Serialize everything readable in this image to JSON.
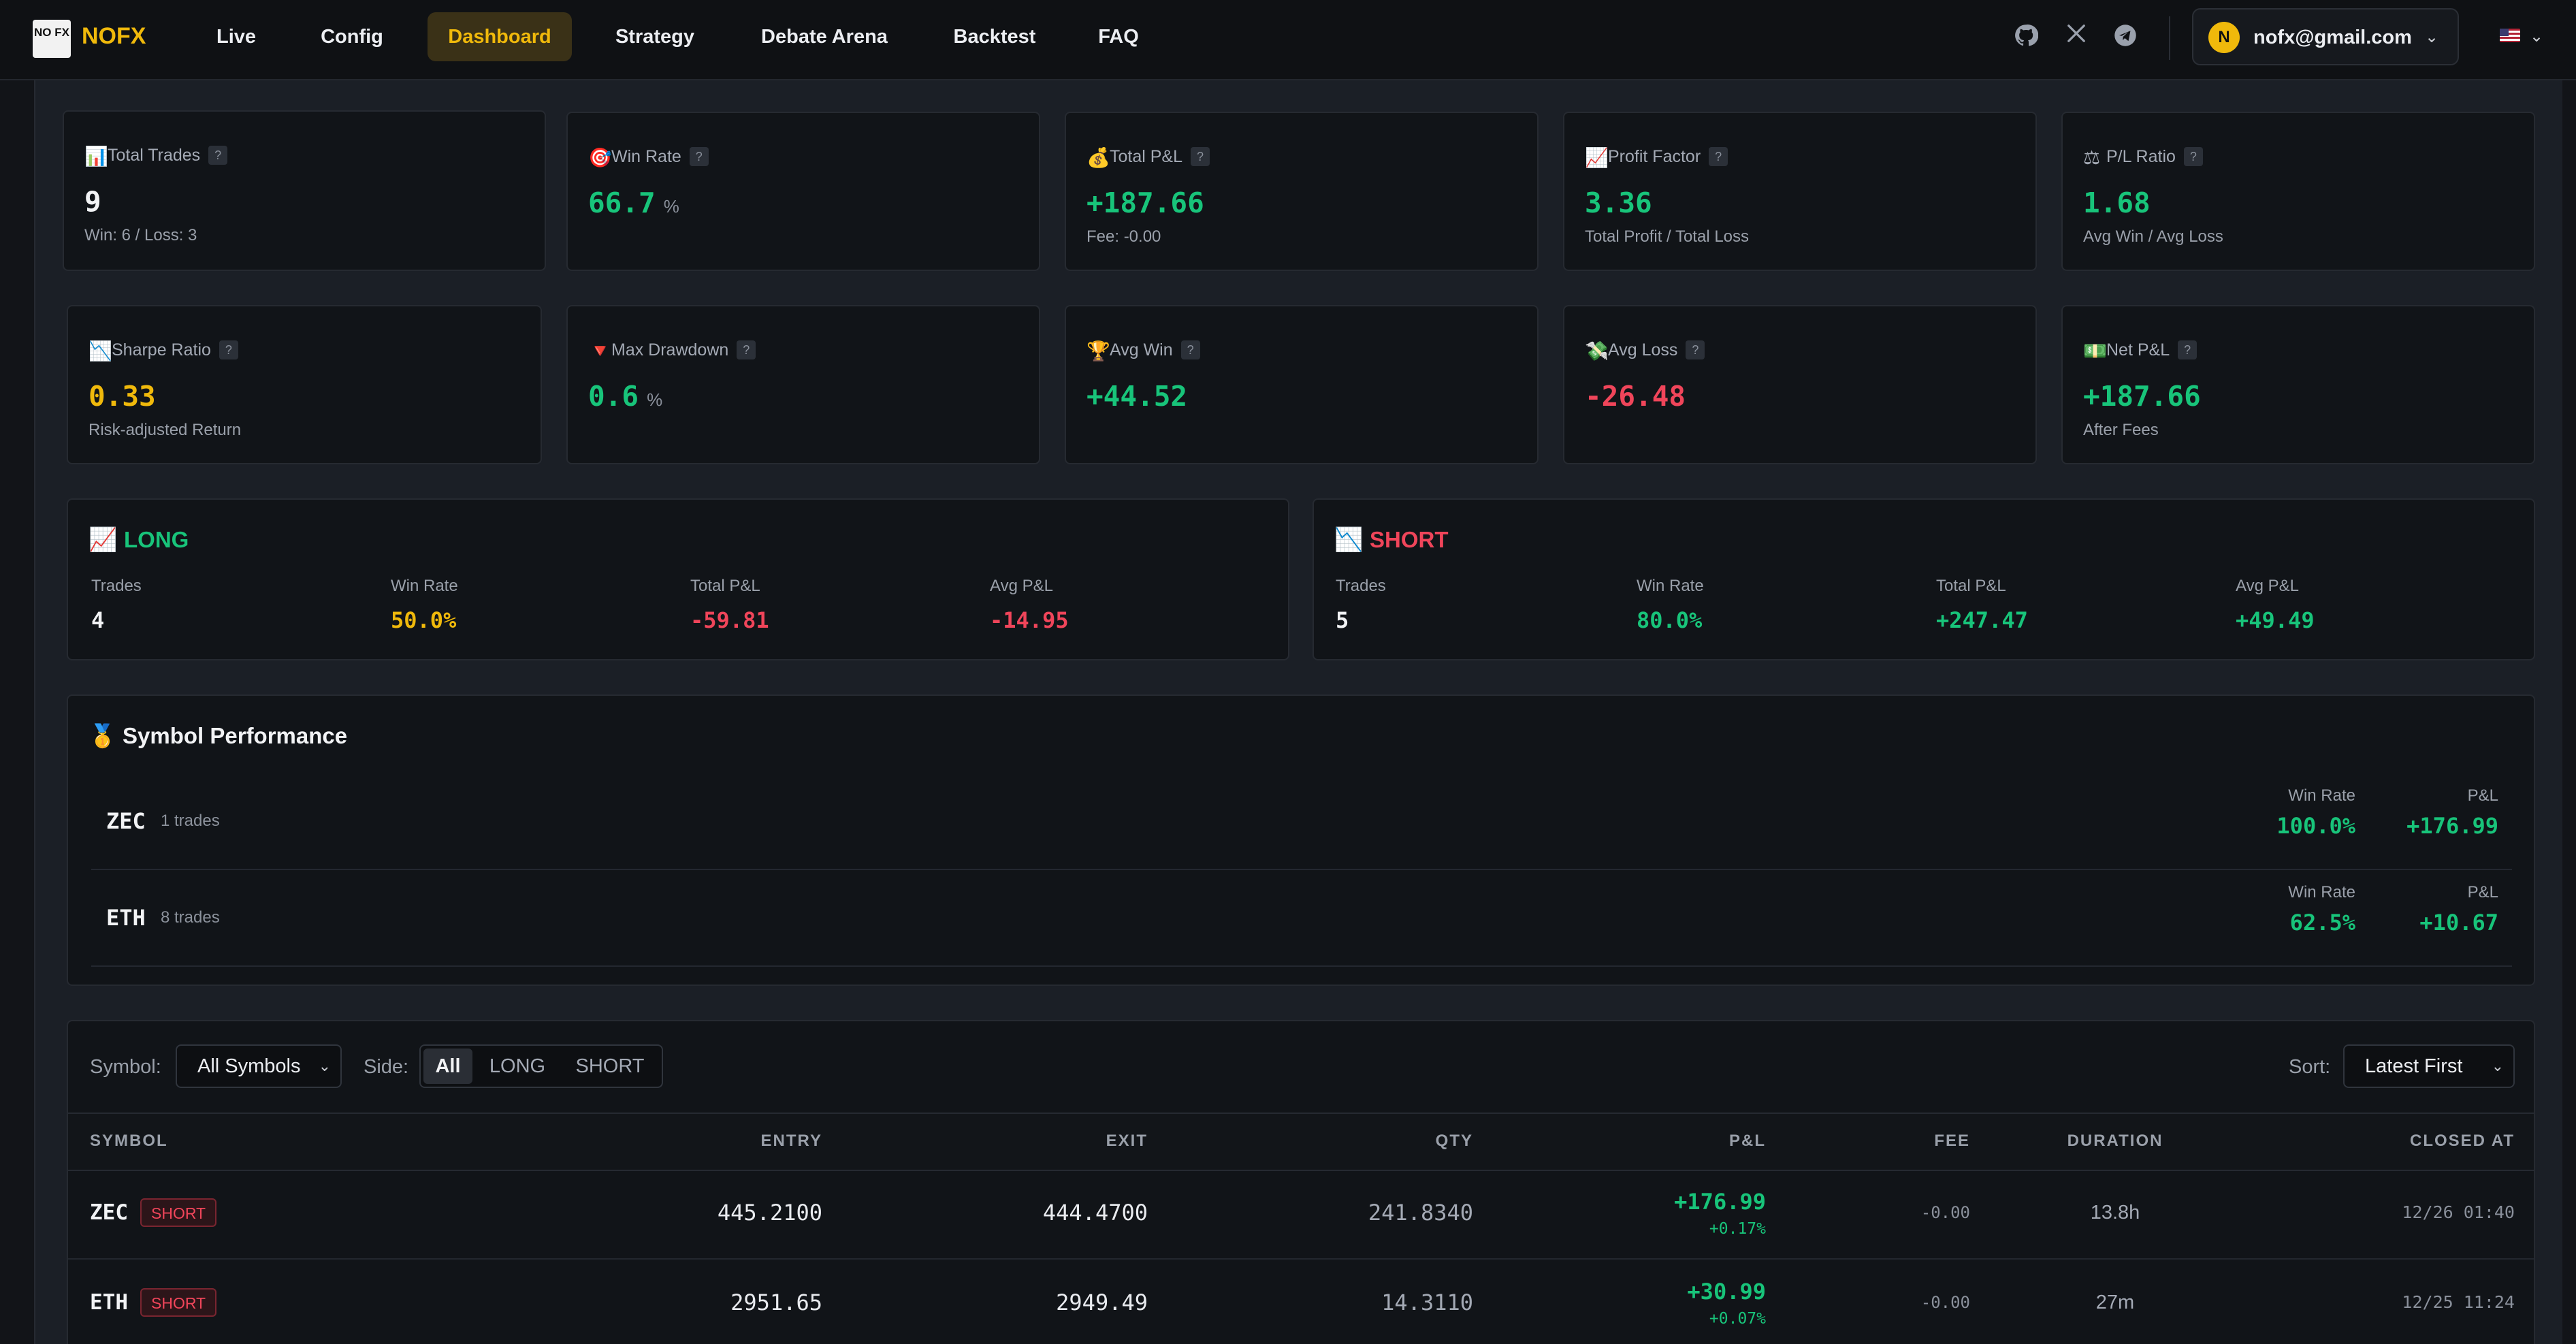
{
  "app": {
    "logo_mark": "NO FX",
    "name": "NOFX"
  },
  "nav": {
    "items": [
      {
        "label": "Live"
      },
      {
        "label": "Config"
      },
      {
        "label": "Dashboard",
        "active": true
      },
      {
        "label": "Strategy"
      },
      {
        "label": "Debate Arena"
      },
      {
        "label": "Backtest"
      },
      {
        "label": "FAQ"
      }
    ],
    "icons": [
      "github-icon",
      "x-icon",
      "telegram-icon"
    ],
    "user": {
      "avatar_letter": "N",
      "email": "nofx@gmail.com"
    },
    "language_flag": "us-flag-icon"
  },
  "colors": {
    "accent": "#f0b90b",
    "positive": "#18c47a",
    "negative": "#f0455a",
    "background": "#1b1f26",
    "card": "#111418"
  },
  "stats": [
    {
      "icon": "📊",
      "label": "Total Trades",
      "value": "9",
      "unit": "",
      "sub": "Win: 6 / Loss: 3",
      "tone": "white"
    },
    {
      "icon": "🎯",
      "label": "Win Rate",
      "value": "66.7",
      "unit": "%",
      "sub": "",
      "tone": "green"
    },
    {
      "icon": "💰",
      "label": "Total P&L",
      "value": "+187.66",
      "unit": "",
      "sub": "Fee: -0.00",
      "tone": "green"
    },
    {
      "icon": "📈",
      "label": "Profit Factor",
      "value": "3.36",
      "unit": "",
      "sub": "Total Profit / Total Loss",
      "tone": "green"
    },
    {
      "icon": "⚖",
      "label": "P/L Ratio",
      "value": "1.68",
      "unit": "",
      "sub": "Avg Win / Avg Loss",
      "tone": "green"
    },
    {
      "icon": "📉",
      "label": "Sharpe Ratio",
      "value": "0.33",
      "unit": "",
      "sub": "Risk-adjusted Return",
      "tone": "yellow"
    },
    {
      "icon": "🔻",
      "label": "Max Drawdown",
      "value": "0.6",
      "unit": "%",
      "sub": "",
      "tone": "green"
    },
    {
      "icon": "🏆",
      "label": "Avg Win",
      "value": "+44.52",
      "unit": "",
      "sub": "",
      "tone": "green"
    },
    {
      "icon": "💸",
      "label": "Avg Loss",
      "value": "-26.48",
      "unit": "",
      "sub": "",
      "tone": "red"
    },
    {
      "icon": "💵",
      "label": "Net P&L",
      "value": "+187.66",
      "unit": "",
      "sub": "After Fees",
      "tone": "green"
    }
  ],
  "help_glyph": "?",
  "long": {
    "icon": "📈",
    "title": "LONG",
    "trades_label": "Trades",
    "trades": "4",
    "winrate_label": "Win Rate",
    "winrate": "50.0%",
    "total_label": "Total P&L",
    "total": "-59.81",
    "avg_label": "Avg P&L",
    "avg": "-14.95"
  },
  "short": {
    "icon": "📉",
    "title": "SHORT",
    "trades_label": "Trades",
    "trades": "5",
    "winrate_label": "Win Rate",
    "winrate": "80.0%",
    "total_label": "Total P&L",
    "total": "+247.47",
    "avg_label": "Avg P&L",
    "avg": "+49.49"
  },
  "symbol_performance": {
    "icon": "🥇",
    "title": "Symbol Performance",
    "winrate_label": "Win Rate",
    "pnl_label": "P&L",
    "rows": [
      {
        "symbol": "ZEC",
        "trades": "1 trades",
        "winrate": "100.0%",
        "pnl": "+176.99"
      },
      {
        "symbol": "ETH",
        "trades": "8 trades",
        "winrate": "62.5%",
        "pnl": "+10.67"
      }
    ]
  },
  "filters": {
    "symbol_label": "Symbol:",
    "symbol_value": "All Symbols",
    "side_label": "Side:",
    "side_options": [
      "All",
      "LONG",
      "SHORT"
    ],
    "side_selected": "All",
    "sort_label": "Sort:",
    "sort_value": "Latest First"
  },
  "table": {
    "columns": [
      "SYMBOL",
      "ENTRY",
      "EXIT",
      "QTY",
      "P&L",
      "FEE",
      "DURATION",
      "CLOSED AT"
    ],
    "rows": [
      {
        "symbol": "ZEC",
        "side": "SHORT",
        "entry": "445.2100",
        "exit": "444.4700",
        "qty": "241.8340",
        "pnl": "+176.99",
        "pnl_pct": "+0.17%",
        "fee": "-0.00",
        "duration": "13.8h",
        "closed_at": "12/26 01:40"
      },
      {
        "symbol": "ETH",
        "side": "SHORT",
        "entry": "2951.65",
        "exit": "2949.49",
        "qty": "14.3110",
        "pnl": "+30.99",
        "pnl_pct": "+0.07%",
        "fee": "-0.00",
        "duration": "27m",
        "closed_at": "12/25 11:24"
      }
    ]
  }
}
